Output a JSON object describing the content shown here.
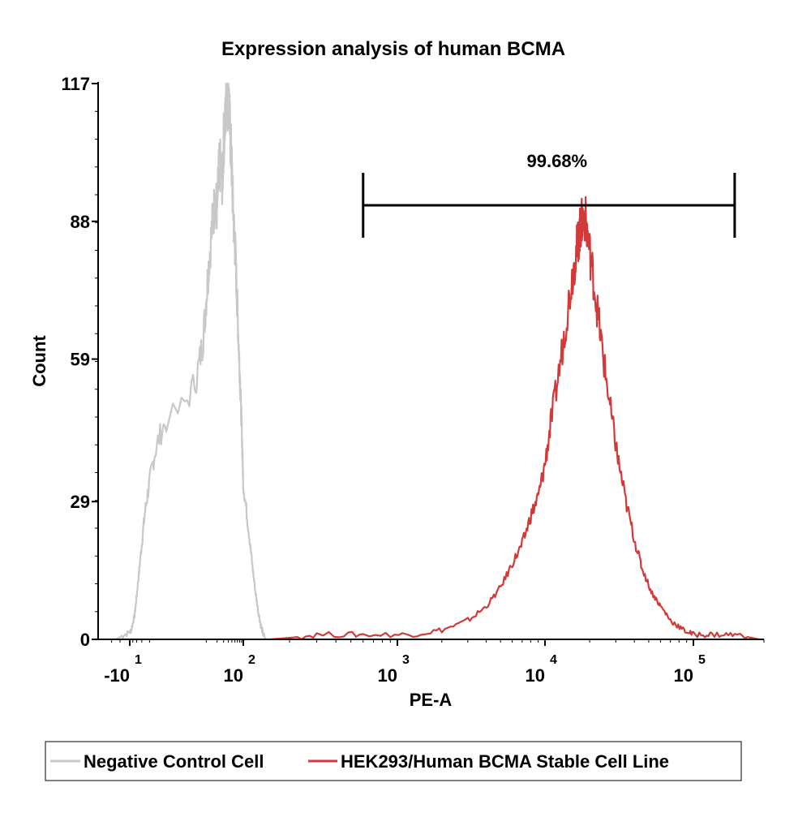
{
  "chart_data": {
    "type": "area",
    "title": "Expression analysis of human BCMA",
    "xlabel": "PE-A",
    "ylabel": "Count",
    "x_scale": "biexponential (log above ~10^2)",
    "xlim": [
      -15,
      200000
    ],
    "ylim": [
      0,
      117
    ],
    "y_ticks": [
      {
        "value": 0,
        "label": "0"
      },
      {
        "value": 29,
        "label": "29"
      },
      {
        "value": 59,
        "label": "59"
      },
      {
        "value": 88,
        "label": "88"
      },
      {
        "value": 117,
        "label": "117"
      }
    ],
    "x_ticks": [
      {
        "base": "-10",
        "exp": "1",
        "value": -10
      },
      {
        "base": "10",
        "exp": "2",
        "value": 100
      },
      {
        "base": "10",
        "exp": "3",
        "value": 1000
      },
      {
        "base": "10",
        "exp": "4",
        "value": 10000
      },
      {
        "base": "10",
        "exp": "5",
        "value": 100000
      }
    ],
    "gate": {
      "label": "99.68%",
      "x_start": 600,
      "x_end": 150000
    },
    "legend": {
      "placement": "bottom"
    },
    "series": [
      {
        "name": "Negative Control Cell",
        "color": "#c8c8c8",
        "points": [
          [
            -13,
            0
          ],
          [
            -11,
            1
          ],
          [
            -9,
            2
          ],
          [
            -7,
            5
          ],
          [
            -6,
            9
          ],
          [
            -5,
            14
          ],
          [
            -4,
            20
          ],
          [
            -3,
            27
          ],
          [
            -2,
            33
          ],
          [
            -1,
            40
          ],
          [
            0,
            46
          ],
          [
            5,
            55
          ],
          [
            8,
            63
          ],
          [
            10,
            72
          ],
          [
            12,
            80
          ],
          [
            15,
            88
          ],
          [
            18,
            93
          ],
          [
            20,
            90
          ],
          [
            22,
            98
          ],
          [
            25,
            100
          ],
          [
            28,
            96
          ],
          [
            30,
            105
          ],
          [
            33,
            108
          ],
          [
            36,
            117
          ],
          [
            38,
            112
          ],
          [
            41,
            116
          ],
          [
            44,
            108
          ],
          [
            48,
            102
          ],
          [
            52,
            94
          ],
          [
            57,
            86
          ],
          [
            62,
            81
          ],
          [
            68,
            72
          ],
          [
            74,
            64
          ],
          [
            80,
            57
          ],
          [
            86,
            50
          ],
          [
            92,
            43
          ],
          [
            98,
            35
          ],
          [
            104,
            28
          ],
          [
            110,
            21
          ],
          [
            115,
            15
          ],
          [
            120,
            10
          ],
          [
            125,
            6
          ],
          [
            130,
            3
          ],
          [
            135,
            1
          ],
          [
            140,
            0
          ]
        ]
      },
      {
        "name": "HEK293/Human BCMA Stable Cell Line",
        "color": "#d23a3a",
        "points": [
          [
            150,
            0
          ],
          [
            300,
            1
          ],
          [
            600,
            1
          ],
          [
            1200,
            1
          ],
          [
            2000,
            2
          ],
          [
            3000,
            4
          ],
          [
            4000,
            7
          ],
          [
            5000,
            11
          ],
          [
            6000,
            16
          ],
          [
            7000,
            20
          ],
          [
            8000,
            26
          ],
          [
            9000,
            30
          ],
          [
            10000,
            37
          ],
          [
            11000,
            46
          ],
          [
            12500,
            57
          ],
          [
            14000,
            68
          ],
          [
            15500,
            78
          ],
          [
            16500,
            83
          ],
          [
            17200,
            86
          ],
          [
            17800,
            88
          ],
          [
            18600,
            89
          ],
          [
            19500,
            84
          ],
          [
            21000,
            77
          ],
          [
            23000,
            67
          ],
          [
            25000,
            58
          ],
          [
            28000,
            47
          ],
          [
            31000,
            38
          ],
          [
            35000,
            29
          ],
          [
            40000,
            21
          ],
          [
            45000,
            15
          ],
          [
            52000,
            10
          ],
          [
            60000,
            7
          ],
          [
            70000,
            4
          ],
          [
            85000,
            2
          ],
          [
            100000,
            1
          ],
          [
            120000,
            1
          ],
          [
            150000,
            1
          ],
          [
            190000,
            0
          ]
        ]
      }
    ]
  }
}
